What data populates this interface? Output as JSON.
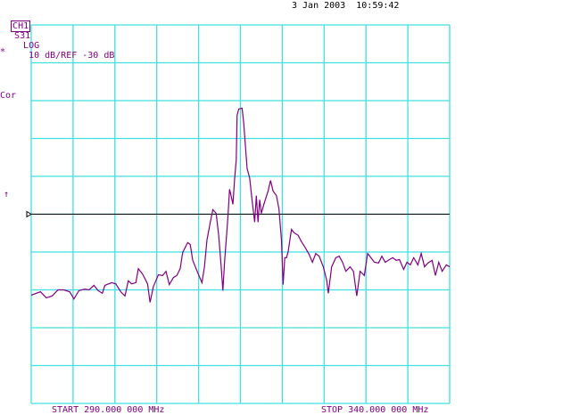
{
  "header": {
    "channel": "CH1",
    "parameter": "S31",
    "format": "LOG",
    "scale": "10 dB/",
    "reference": "REF -30 dB",
    "date": "3 Jan 2003",
    "time": "10:59:42"
  },
  "annotations": {
    "star": "*",
    "correction": "Cor",
    "arrow": "↑"
  },
  "footer": {
    "start": "START 290.000 000 MHz",
    "stop": "STOP 340.000 000 MHz"
  },
  "colors": {
    "trace": "#800080",
    "grid": "#40E0E0",
    "reference_line": "#000000",
    "text": "#800080"
  },
  "chart_data": {
    "type": "line",
    "xlabel": "",
    "ylabel": "",
    "xlim": [
      290,
      340
    ],
    "ylim": [
      -80,
      20
    ],
    "reference_level_db": -30,
    "x_divisions": 10,
    "y_divisions": 10,
    "grid": true,
    "series": [
      {
        "x": [
          290.0,
          291.1,
          291.8,
          292.5,
          293.2,
          293.9,
          294.6,
          295.1,
          295.7,
          296.4,
          296.9,
          297.5,
          298.0,
          298.5,
          298.8,
          299.6,
          300.1,
          300.7,
          301.2,
          301.6,
          302.0,
          302.5,
          302.8,
          303.3,
          303.9,
          304.2,
          304.6,
          305.2,
          305.7,
          306.1,
          306.5,
          307.0,
          307.4,
          307.8,
          308.1,
          308.7,
          309.0,
          309.3,
          309.7,
          310.0,
          310.4,
          310.7,
          311.0,
          311.4,
          311.7,
          312.1,
          312.4,
          312.7,
          312.9,
          313.1,
          313.5,
          313.7,
          313.9,
          314.1,
          314.3,
          314.5,
          314.6,
          314.8,
          315.2,
          315.4,
          315.6,
          315.8,
          316.1,
          316.4,
          316.7,
          316.9,
          317.1,
          317.3,
          317.5,
          317.8,
          318.3,
          318.6,
          318.9,
          319.3,
          319.6,
          319.9,
          320.1,
          320.3,
          320.5,
          320.7,
          321.1,
          321.4,
          321.9,
          322.3,
          322.7,
          323.2,
          323.6,
          324.0,
          324.4,
          324.9,
          325.3,
          325.5,
          325.9,
          326.4,
          326.8,
          327.2,
          327.6,
          328.1,
          328.5,
          328.9,
          329.3,
          329.8,
          330.2,
          330.6,
          331.0,
          331.5,
          331.9,
          332.3,
          332.8,
          333.2,
          333.6,
          334.0,
          334.5,
          334.9,
          335.3,
          335.7,
          336.2,
          336.6,
          337.0,
          337.4,
          337.9,
          338.3,
          338.7,
          339.1,
          339.6,
          340.0
        ],
        "y": [
          -51.4,
          -50.5,
          -52.1,
          -51.6,
          -50.0,
          -50.0,
          -50.5,
          -52.4,
          -50.2,
          -49.8,
          -50.0,
          -48.8,
          -50.2,
          -50.9,
          -48.8,
          -48.1,
          -48.4,
          -50.5,
          -51.6,
          -47.6,
          -48.4,
          -48.1,
          -44.4,
          -45.8,
          -48.4,
          -53.3,
          -49.1,
          -46.0,
          -46.2,
          -45.1,
          -48.6,
          -46.7,
          -46.2,
          -44.4,
          -40.1,
          -37.5,
          -38.0,
          -42.2,
          -44.4,
          -46.0,
          -48.1,
          -43.9,
          -36.8,
          -32.1,
          -28.8,
          -29.8,
          -35.6,
          -43.9,
          -50.2,
          -42.7,
          -30.9,
          -23.4,
          -25.3,
          -27.4,
          -20.8,
          -15.6,
          -3.9,
          -2.2,
          -2.0,
          -6.2,
          -12.1,
          -18.0,
          -20.4,
          -26.5,
          -32.1,
          -25.1,
          -32.1,
          -26.2,
          -29.8,
          -27.4,
          -23.9,
          -21.1,
          -23.9,
          -25.1,
          -28.6,
          -36.8,
          -48.6,
          -41.5,
          -41.5,
          -39.9,
          -34.0,
          -34.9,
          -35.6,
          -37.3,
          -38.7,
          -40.6,
          -42.7,
          -40.4,
          -41.1,
          -43.9,
          -47.4,
          -50.9,
          -43.9,
          -41.5,
          -41.1,
          -42.7,
          -45.1,
          -43.9,
          -45.1,
          -51.6,
          -45.1,
          -46.2,
          -40.4,
          -41.5,
          -42.7,
          -42.9,
          -41.1,
          -42.7,
          -42.0,
          -41.5,
          -42.2,
          -42.0,
          -44.6,
          -42.7,
          -43.4,
          -41.5,
          -43.4,
          -40.4,
          -43.9,
          -42.9,
          -42.2,
          -46.2,
          -42.7,
          -45.1,
          -43.4,
          -43.9
        ]
      }
    ]
  }
}
